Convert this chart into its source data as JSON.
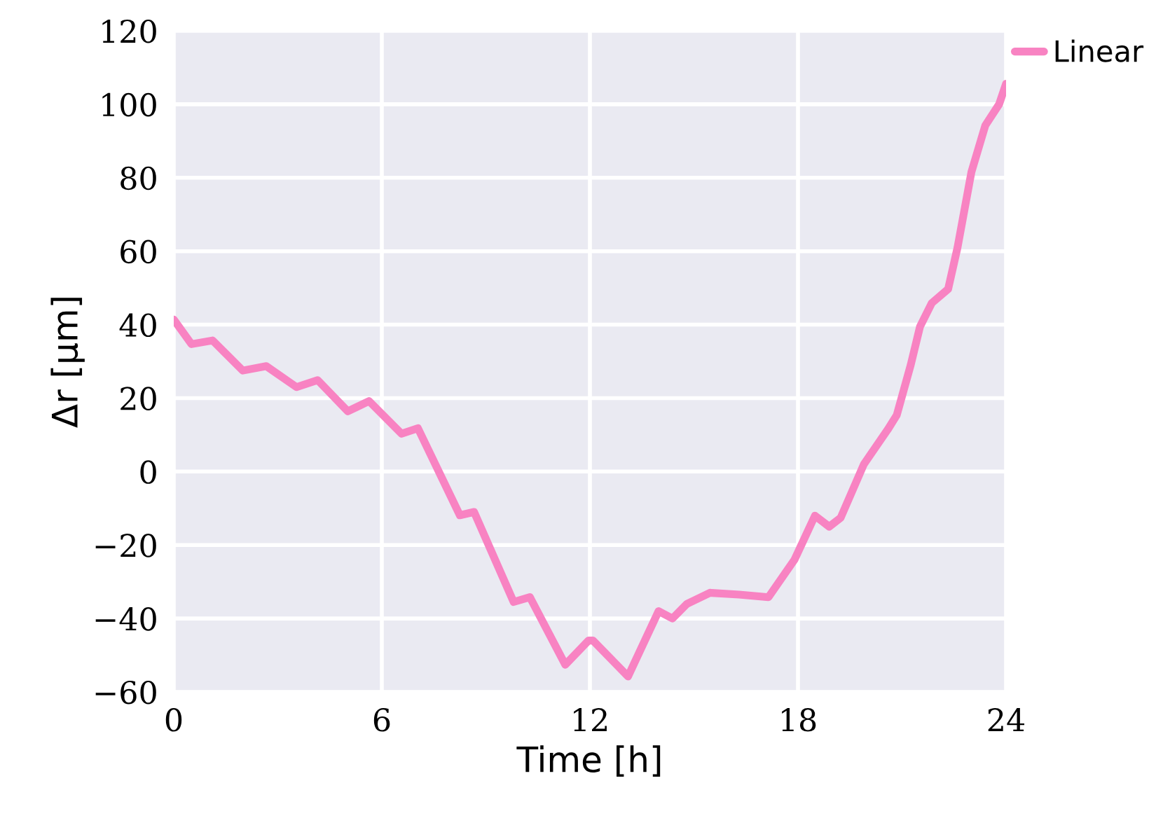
{
  "chart_data": {
    "type": "line",
    "xlabel": "Time [h]",
    "ylabel": "Δr [μm]",
    "x": [
      0,
      0.51,
      1.12,
      1.99,
      2.67,
      3.54,
      4.15,
      5.02,
      5.63,
      6.57,
      7.04,
      8.25,
      8.66,
      9.8,
      10.27,
      11.29,
      11.96,
      12.09,
      13.1,
      13.98,
      14.38,
      14.8,
      15.46,
      16.3,
      17.15,
      17.9,
      18.49,
      18.9,
      19.23,
      19.9,
      20.6,
      20.85,
      21.25,
      21.52,
      21.86,
      22.33,
      22.6,
      23.0,
      23.4,
      23.8,
      24
    ],
    "series": [
      {
        "name": "Linear",
        "color": "#f883c2",
        "values": [
          41.4,
          34.7,
          35.7,
          27.5,
          28.7,
          23,
          24.9,
          16.4,
          19.2,
          10.3,
          11.8,
          -11.9,
          -11,
          -35.5,
          -34.2,
          -52.6,
          -46,
          -46,
          -55.8,
          -38,
          -40,
          -36,
          -33,
          -33.5,
          -34.2,
          -24,
          -12,
          -15,
          -12.6,
          2,
          11.6,
          15.4,
          29,
          39.5,
          45.9,
          49.7,
          61,
          81.5,
          94.2,
          100,
          105.6
        ]
      }
    ],
    "xlim": [
      0,
      24
    ],
    "xticks": [
      0,
      6,
      12,
      18,
      24
    ],
    "ylim": [
      -60,
      120
    ],
    "yticks": [
      -60,
      -40,
      -20,
      0,
      20,
      40,
      60,
      80,
      100,
      120
    ],
    "grid": true,
    "legend": "top right",
    "line_style": "solid",
    "marker": "none"
  }
}
